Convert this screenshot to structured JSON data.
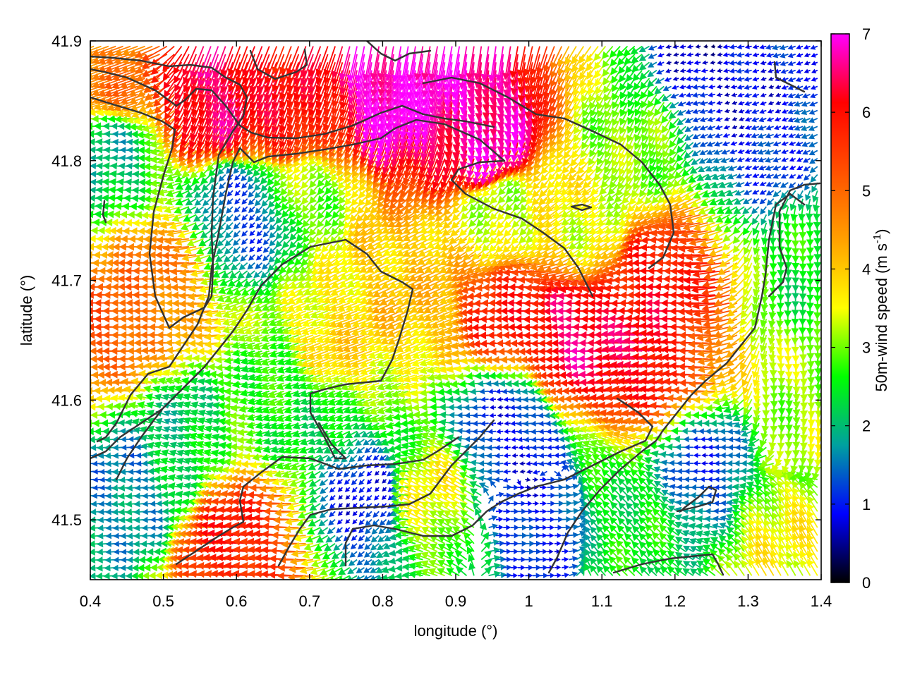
{
  "chart_data": {
    "type": "vector-field",
    "xlabel": "longitude (°)",
    "ylabel": "latitude (°)",
    "xlim": [
      0.4,
      1.4
    ],
    "ylim": [
      41.45,
      41.9
    ],
    "xticks": [
      "0.4",
      "0.5",
      "0.6",
      "0.7",
      "0.8",
      "0.9",
      "1",
      "1.1",
      "1.2",
      "1.3",
      "1.4"
    ],
    "yticks": [
      "41.5",
      "41.6",
      "41.7",
      "41.8",
      "41.9"
    ],
    "grid": false,
    "colorbar": {
      "label_main": "50m-wind speed (m s",
      "label_sup": "-1",
      "label_close": ")",
      "range": [
        0,
        7
      ],
      "ticks": [
        "0",
        "1",
        "2",
        "3",
        "4",
        "5",
        "6",
        "7"
      ],
      "palette": [
        "#000000",
        "#0000ff",
        "#00a0a0",
        "#00ff00",
        "#ffff00",
        "#ffa000",
        "#ff5000",
        "#ff0000",
        "#ff00ff"
      ]
    },
    "wind_field": {
      "grid_step_lon": 0.01,
      "grid_step_lat": 0.0067,
      "speed_max_ms": 7,
      "regions": [
        {
          "lon": 0.82,
          "lat": 41.87,
          "speed": 7.0,
          "dir_deg": 260
        },
        {
          "lon": 0.95,
          "lat": 41.84,
          "speed": 6.8,
          "dir_deg": 265
        },
        {
          "lon": 0.68,
          "lat": 41.85,
          "speed": 6.0,
          "dir_deg": 250
        },
        {
          "lon": 0.58,
          "lat": 41.87,
          "speed": 6.5,
          "dir_deg": 250
        },
        {
          "lon": 0.45,
          "lat": 41.88,
          "speed": 4.8,
          "dir_deg": 200
        },
        {
          "lon": 1.1,
          "lat": 41.66,
          "speed": 6.5,
          "dir_deg": 180
        },
        {
          "lon": 1.0,
          "lat": 41.68,
          "speed": 5.8,
          "dir_deg": 180
        },
        {
          "lon": 1.2,
          "lat": 41.7,
          "speed": 6.0,
          "dir_deg": 180
        },
        {
          "lon": 1.18,
          "lat": 41.63,
          "speed": 6.2,
          "dir_deg": 175
        },
        {
          "lon": 0.85,
          "lat": 41.7,
          "speed": 4.0,
          "dir_deg": 205
        },
        {
          "lon": 0.75,
          "lat": 41.65,
          "speed": 3.8,
          "dir_deg": 200
        },
        {
          "lon": 0.7,
          "lat": 41.78,
          "speed": 3.0,
          "dir_deg": 230
        },
        {
          "lon": 0.5,
          "lat": 41.7,
          "speed": 4.8,
          "dir_deg": 180
        },
        {
          "lon": 0.45,
          "lat": 41.66,
          "speed": 5.2,
          "dir_deg": 180
        },
        {
          "lon": 0.44,
          "lat": 41.8,
          "speed": 2.0,
          "dir_deg": 175
        },
        {
          "lon": 0.62,
          "lat": 41.76,
          "speed": 1.2,
          "dir_deg": 225
        },
        {
          "lon": 0.53,
          "lat": 41.57,
          "speed": 2.2,
          "dir_deg": 160
        },
        {
          "lon": 0.46,
          "lat": 41.53,
          "speed": 1.6,
          "dir_deg": 185
        },
        {
          "lon": 0.63,
          "lat": 41.48,
          "speed": 5.8,
          "dir_deg": 175
        },
        {
          "lon": 0.78,
          "lat": 41.52,
          "speed": 1.0,
          "dir_deg": 225
        },
        {
          "lon": 0.98,
          "lat": 41.57,
          "speed": 0.9,
          "dir_deg": 185
        },
        {
          "lon": 1.0,
          "lat": 41.5,
          "speed": 1.0,
          "dir_deg": 0
        },
        {
          "lon": 1.15,
          "lat": 41.5,
          "speed": 2.5,
          "dir_deg": 135
        },
        {
          "lon": 1.25,
          "lat": 41.54,
          "speed": 1.2,
          "dir_deg": 180
        },
        {
          "lon": 1.35,
          "lat": 41.48,
          "speed": 3.5,
          "dir_deg": 120
        },
        {
          "lon": 1.32,
          "lat": 41.82,
          "speed": 1.0,
          "dir_deg": 200
        },
        {
          "lon": 1.25,
          "lat": 41.88,
          "speed": 0.7,
          "dir_deg": 190
        },
        {
          "lon": 1.15,
          "lat": 41.82,
          "speed": 3.0,
          "dir_deg": 245
        },
        {
          "lon": 1.1,
          "lat": 41.75,
          "speed": 3.5,
          "dir_deg": 215
        },
        {
          "lon": 0.98,
          "lat": 41.76,
          "speed": 3.2,
          "dir_deg": 225
        },
        {
          "lon": 1.38,
          "lat": 41.6,
          "speed": 3.2,
          "dir_deg": 275
        },
        {
          "lon": 1.38,
          "lat": 41.72,
          "speed": 2.5,
          "dir_deg": 270
        },
        {
          "lon": 0.88,
          "lat": 41.52,
          "speed": 3.5,
          "dir_deg": 150
        },
        {
          "lon": 0.7,
          "lat": 41.6,
          "speed": 2.5,
          "dir_deg": 200
        }
      ]
    }
  }
}
